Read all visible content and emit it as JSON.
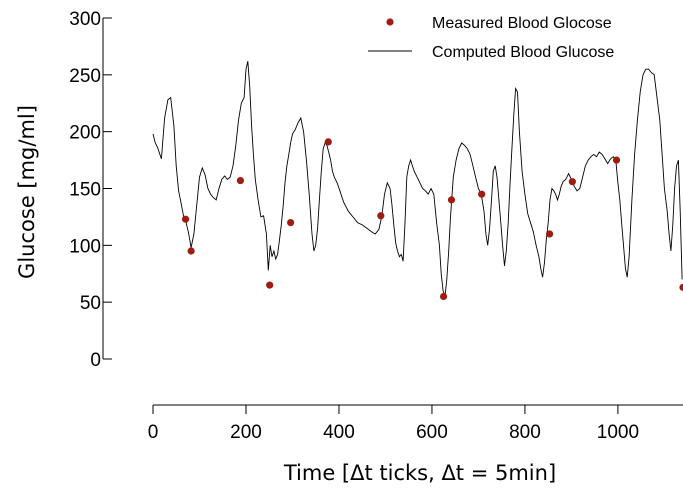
{
  "chart_data": {
    "type": "line",
    "xlabel": "Time [Δt ticks, Δt = 5min]",
    "ylabel": "Glucose [mg/ml]",
    "xlim": [
      0,
      1140
    ],
    "ylim": [
      0,
      300
    ],
    "x_ticks": [
      "0",
      "200",
      "400",
      "600",
      "800",
      "1000"
    ],
    "y_ticks": [
      "0",
      "50",
      "100",
      "150",
      "200",
      "250",
      "300"
    ],
    "grid": false,
    "legend_position": "top-right",
    "legend": [
      "Measured Blood Glocose",
      "Computed Blood Glucose"
    ],
    "colors": {
      "measured": "#a01c10",
      "computed": "#000000"
    },
    "series": [
      {
        "name": "Measured Blood Glocose",
        "kind": "scatter",
        "x": [
          70,
          82,
          188,
          251,
          296,
          377,
          490,
          625,
          642,
          707,
          853,
          902,
          997,
          1140
        ],
        "y": [
          123,
          95,
          157,
          65,
          120,
          191,
          126,
          55,
          140,
          145,
          110,
          156,
          175,
          63
        ]
      },
      {
        "name": "Computed Blood Glucose",
        "kind": "line",
        "x": [
          0,
          5,
          10,
          18,
          25,
          32,
          38,
          45,
          50,
          55,
          60,
          66,
          70,
          76,
          82,
          88,
          94,
          100,
          106,
          112,
          118,
          124,
          130,
          136,
          142,
          148,
          154,
          160,
          166,
          172,
          178,
          184,
          190,
          196,
          200,
          204,
          208,
          212,
          216,
          220,
          226,
          232,
          238,
          244,
          248,
          252,
          256,
          260,
          264,
          268,
          272,
          276,
          280,
          284,
          288,
          292,
          296,
          300,
          306,
          312,
          318,
          324,
          330,
          336,
          342,
          346,
          350,
          354,
          358,
          362,
          366,
          370,
          374,
          378,
          382,
          386,
          390,
          396,
          402,
          410,
          420,
          430,
          440,
          450,
          460,
          470,
          478,
          486,
          492,
          498,
          504,
          510,
          514,
          518,
          522,
          526,
          530,
          534,
          538,
          542,
          546,
          550,
          554,
          558,
          562,
          568,
          574,
          580,
          586,
          592,
          598,
          604,
          610,
          616,
          620,
          624,
          628,
          632,
          636,
          640,
          646,
          652,
          658,
          664,
          670,
          676,
          682,
          688,
          694,
          700,
          706,
          712,
          716,
          720,
          724,
          728,
          732,
          736,
          740,
          744,
          748,
          752,
          756,
          760,
          764,
          768,
          772,
          776,
          780,
          784,
          788,
          794,
          800,
          806,
          812,
          818,
          824,
          830,
          834,
          838,
          842,
          846,
          850,
          854,
          858,
          862,
          866,
          870,
          874,
          878,
          882,
          888,
          894,
          900,
          906,
          912,
          918,
          924,
          930,
          936,
          942,
          948,
          954,
          960,
          966,
          972,
          978,
          984,
          990,
          996,
          1000,
          1004,
          1008,
          1012,
          1016,
          1020,
          1024,
          1030,
          1036,
          1042,
          1048,
          1054,
          1060,
          1066,
          1072,
          1078,
          1084,
          1090,
          1096,
          1100,
          1106,
          1110,
          1114,
          1118,
          1122,
          1126,
          1130,
          1134,
          1138
        ],
        "y": [
          198,
          190,
          186,
          176,
          212,
          228,
          230,
          205,
          170,
          148,
          138,
          125,
          122,
          112,
          98,
          110,
          135,
          160,
          168,
          162,
          150,
          145,
          142,
          140,
          150,
          158,
          161,
          158,
          160,
          170,
          188,
          210,
          225,
          230,
          255,
          262,
          240,
          205,
          180,
          158,
          140,
          125,
          126,
          110,
          78,
          100,
          90,
          95,
          88,
          92,
          105,
          118,
          135,
          155,
          170,
          180,
          190,
          198,
          202,
          208,
          212,
          200,
          175,
          145,
          110,
          95,
          100,
          115,
          140,
          165,
          185,
          190,
          188,
          182,
          175,
          165,
          160,
          155,
          148,
          138,
          130,
          125,
          120,
          118,
          115,
          112,
          110,
          114,
          125,
          145,
          155,
          150,
          135,
          118,
          102,
          95,
          90,
          92,
          86,
          120,
          160,
          170,
          175,
          170,
          165,
          160,
          155,
          150,
          148,
          145,
          150,
          145,
          120,
          100,
          75,
          60,
          55,
          70,
          95,
          125,
          160,
          175,
          185,
          190,
          188,
          185,
          180,
          170,
          160,
          150,
          145,
          130,
          110,
          100,
          115,
          140,
          165,
          170,
          160,
          140,
          120,
          100,
          82,
          95,
          120,
          155,
          185,
          215,
          238,
          235,
          200,
          165,
          145,
          128,
          120,
          112,
          100,
          90,
          80,
          72,
          85,
          105,
          120,
          140,
          150,
          148,
          145,
          140,
          145,
          152,
          156,
          158,
          163,
          158,
          152,
          148,
          150,
          160,
          170,
          175,
          178,
          180,
          178,
          182,
          180,
          176,
          172,
          176,
          178,
          172,
          155,
          140,
          120,
          100,
          80,
          72,
          90,
          140,
          180,
          210,
          235,
          250,
          255,
          255,
          252,
          250,
          230,
          210,
          175,
          150,
          130,
          110,
          95,
          118,
          150,
          170,
          175,
          130,
          70
        ]
      }
    ]
  }
}
